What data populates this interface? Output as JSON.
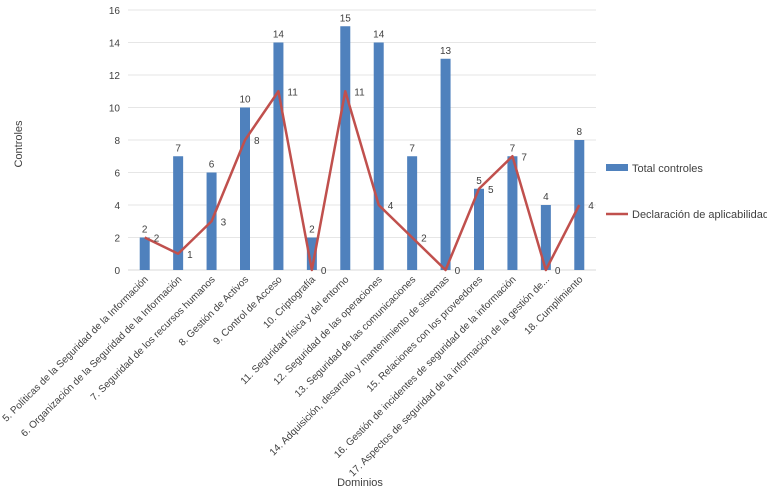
{
  "chart_data": {
    "type": "bar",
    "categories": [
      "5. Políticas de la Seguridad de la Información",
      "6. Organización de la Seguridad de la Información",
      "7. Seguridad de los recursos humanos",
      "8. Gestión de Activos",
      "9. Control de Acceso",
      "10. Criptografía",
      "11. Seguridad  física y del entorno",
      "12. Seguridad de las operaciones",
      "13. Seguridad de las comunicaciones",
      "14. Adquisición, desarrollo y mantenimiento de sistemas",
      "15. Relaciones con los proveedores",
      "16. Gestión de incidentes de seguridad de la información",
      "17. Aspectos de seguridad de la información de la gestión de...",
      "18. Cumplimiento"
    ],
    "series": [
      {
        "name": "Total controles",
        "type": "bar",
        "color": "#4F81BD",
        "values": [
          2,
          7,
          6,
          10,
          14,
          2,
          15,
          14,
          7,
          13,
          5,
          7,
          4,
          8
        ]
      },
      {
        "name": "Declaración de aplicabilidad",
        "type": "line",
        "color": "#C0504D",
        "values": [
          2,
          1,
          3,
          8,
          11,
          0,
          11,
          4,
          2,
          0,
          5,
          7,
          0,
          4
        ]
      }
    ],
    "xlabel": "Dominios",
    "ylabel": "Controles",
    "ylim": [
      0,
      16
    ],
    "yticks": [
      0,
      2,
      4,
      6,
      8,
      10,
      12,
      14,
      16
    ],
    "grid": true,
    "legend": "right"
  }
}
